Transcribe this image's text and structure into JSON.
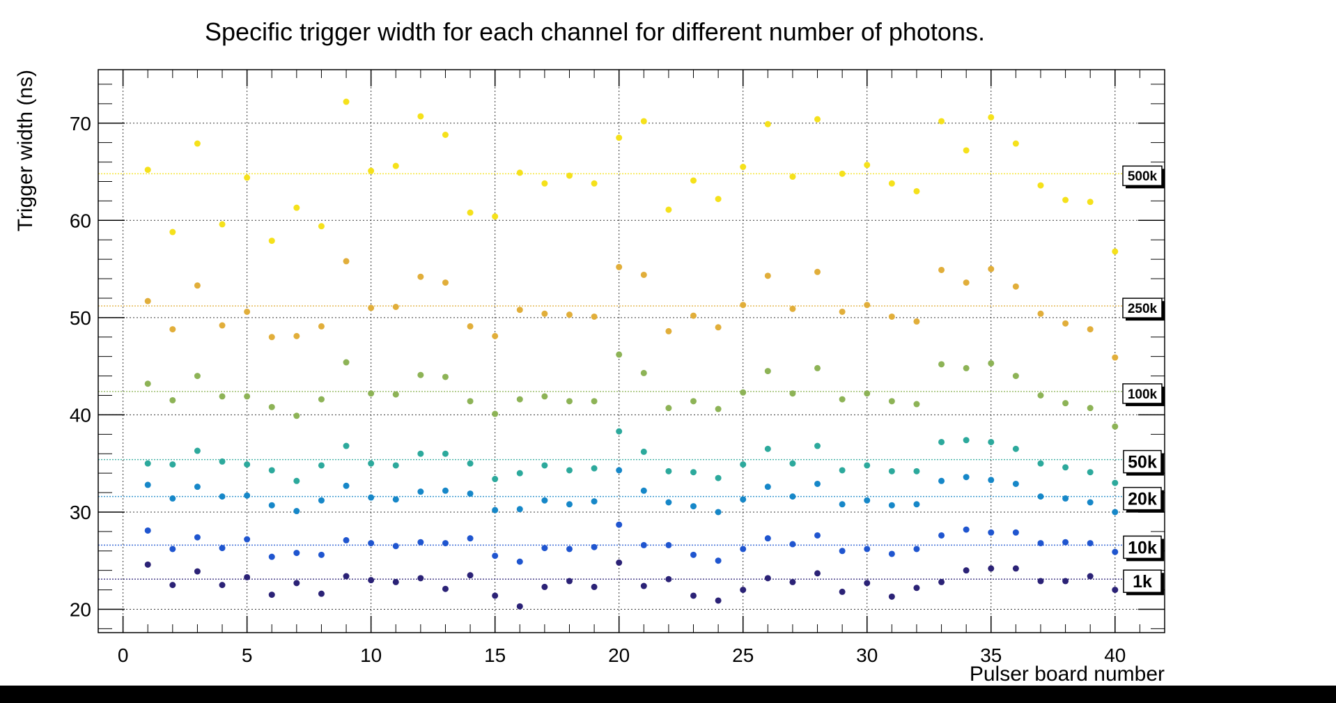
{
  "chart_data": {
    "type": "scatter",
    "title": "Specific trigger width for each channel for different number of photons.",
    "xlabel": "Pulser board number",
    "ylabel": "Trigger width (ns)",
    "xlim": [
      -1,
      42
    ],
    "ylim": [
      17.6,
      75.5
    ],
    "xticks": [
      0,
      5,
      10,
      15,
      20,
      25,
      30,
      35,
      40
    ],
    "yticks": [
      20,
      30,
      40,
      50,
      60,
      70
    ],
    "grid": true,
    "x": [
      1,
      2,
      3,
      4,
      5,
      6,
      7,
      8,
      9,
      10,
      11,
      12,
      13,
      14,
      15,
      16,
      17,
      18,
      19,
      20,
      21,
      22,
      23,
      24,
      25,
      26,
      27,
      28,
      29,
      30,
      31,
      32,
      33,
      34,
      35,
      36,
      37,
      38,
      39,
      40
    ],
    "series": [
      {
        "name": "500k",
        "color": "#f5e11b",
        "mean": 64.8,
        "values": [
          65.2,
          58.8,
          67.9,
          59.6,
          64.4,
          57.9,
          61.3,
          59.4,
          72.2,
          65.1,
          65.6,
          70.7,
          68.8,
          60.8,
          60.4,
          64.9,
          63.8,
          64.6,
          63.8,
          68.5,
          70.2,
          61.1,
          64.1,
          62.2,
          65.5,
          69.9,
          64.5,
          70.4,
          64.8,
          65.7,
          63.8,
          63.0,
          70.2,
          67.2,
          70.6,
          67.9,
          63.6,
          62.1,
          61.9,
          56.8
        ]
      },
      {
        "name": "250k",
        "color": "#e1ae3a",
        "mean": 51.2,
        "values": [
          51.7,
          48.8,
          53.3,
          49.2,
          50.6,
          48.0,
          48.1,
          49.1,
          55.8,
          51.0,
          51.1,
          54.2,
          53.6,
          49.1,
          48.1,
          50.8,
          50.4,
          50.3,
          50.1,
          55.2,
          54.4,
          48.6,
          50.2,
          49.0,
          51.3,
          54.3,
          50.9,
          54.7,
          50.6,
          51.3,
          50.1,
          49.6,
          54.9,
          53.6,
          55.0,
          53.2,
          50.4,
          49.4,
          48.8,
          45.9
        ]
      },
      {
        "name": "100k",
        "color": "#8db356",
        "mean": 42.4,
        "values": [
          43.2,
          41.5,
          44.0,
          41.9,
          41.9,
          40.8,
          39.9,
          41.6,
          45.4,
          42.2,
          42.1,
          44.1,
          43.9,
          41.4,
          40.1,
          41.6,
          41.9,
          41.4,
          41.4,
          46.2,
          44.3,
          40.7,
          41.4,
          40.6,
          42.3,
          44.5,
          42.2,
          44.8,
          41.6,
          42.2,
          41.4,
          41.1,
          45.2,
          44.8,
          45.3,
          44.0,
          42.0,
          41.2,
          40.7,
          38.8
        ]
      },
      {
        "name": "50k",
        "color": "#2ca99c",
        "mean": 35.4,
        "values": [
          35.0,
          34.9,
          36.3,
          35.2,
          34.9,
          34.3,
          33.2,
          34.8,
          36.8,
          35.0,
          34.8,
          36.0,
          36.0,
          35.0,
          33.4,
          34.0,
          34.8,
          34.3,
          34.5,
          38.3,
          36.2,
          34.2,
          34.1,
          33.5,
          34.9,
          36.5,
          35.0,
          36.8,
          34.3,
          34.8,
          34.2,
          34.2,
          37.2,
          37.4,
          37.2,
          36.5,
          35.0,
          34.6,
          34.1,
          33.0
        ]
      },
      {
        "name": "20k",
        "color": "#1687c8",
        "mean": 31.6,
        "values": [
          32.8,
          31.4,
          32.6,
          31.6,
          31.7,
          30.7,
          30.1,
          31.2,
          32.7,
          31.5,
          31.3,
          32.1,
          32.2,
          31.9,
          30.2,
          30.3,
          31.2,
          30.8,
          31.1,
          34.3,
          32.2,
          31.0,
          30.6,
          30.0,
          31.3,
          32.6,
          31.6,
          32.9,
          30.8,
          31.2,
          30.7,
          30.8,
          33.2,
          33.6,
          33.3,
          32.9,
          31.6,
          31.4,
          31.0,
          30.0
        ]
      },
      {
        "name": "10k",
        "color": "#1f55cf",
        "mean": 26.6,
        "values": [
          28.1,
          26.2,
          27.4,
          26.3,
          27.2,
          25.4,
          25.8,
          25.6,
          27.1,
          26.8,
          26.5,
          26.9,
          26.8,
          27.3,
          25.5,
          24.9,
          26.3,
          26.2,
          26.4,
          28.7,
          26.6,
          26.6,
          25.6,
          25.0,
          26.2,
          27.3,
          26.7,
          27.6,
          26.0,
          26.2,
          25.7,
          26.2,
          27.6,
          28.2,
          27.9,
          27.9,
          26.8,
          26.9,
          26.8,
          25.9
        ]
      },
      {
        "name": "1k",
        "color": "#2b2276",
        "mean": 23.1,
        "values": [
          24.6,
          22.5,
          23.9,
          22.5,
          23.3,
          21.5,
          22.7,
          21.6,
          23.4,
          23.0,
          22.8,
          23.2,
          22.1,
          23.5,
          21.4,
          20.3,
          22.3,
          22.9,
          22.3,
          24.8,
          22.4,
          23.1,
          21.4,
          20.9,
          22.0,
          23.2,
          22.8,
          23.7,
          21.8,
          22.7,
          21.3,
          22.2,
          22.8,
          24.0,
          24.2,
          24.2,
          22.9,
          22.9,
          23.4,
          22.0
        ]
      }
    ]
  }
}
